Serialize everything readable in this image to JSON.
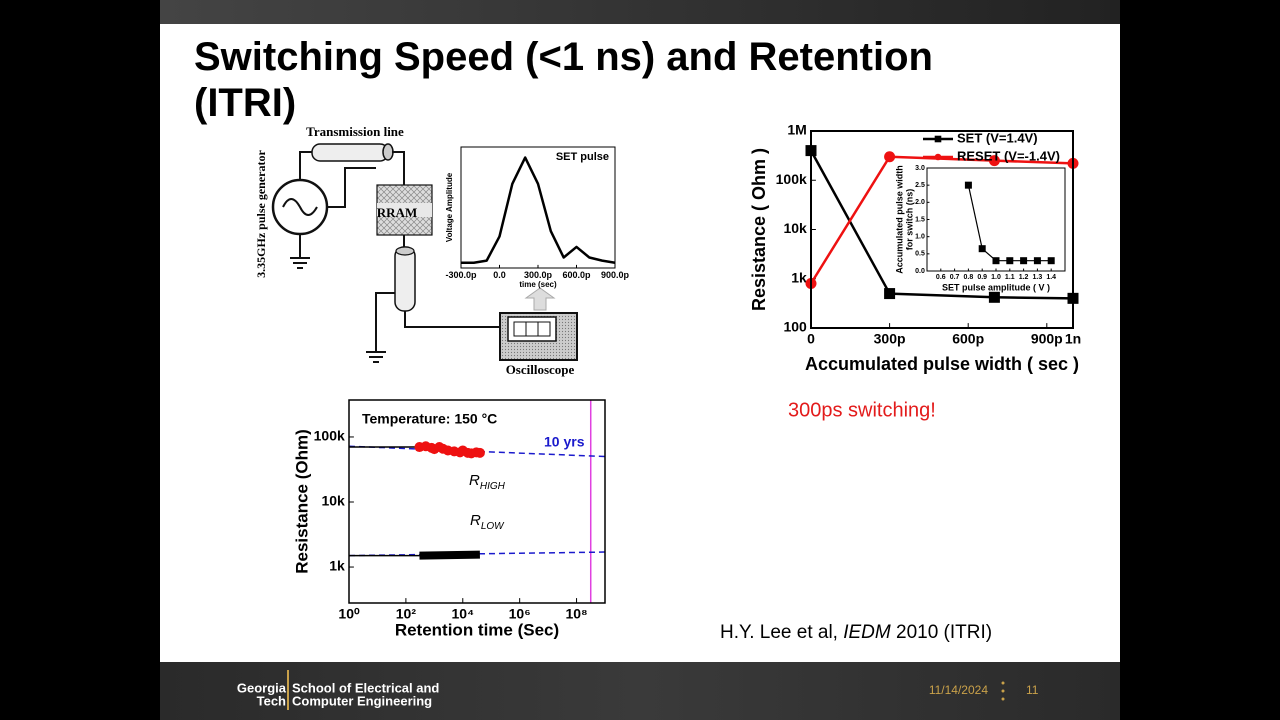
{
  "slide": {
    "title": "Switching Speed (<1 ns) and Retention (ITRI)",
    "annotation": "300ps switching!",
    "citation": [
      "H.Y. Lee et al,",
      "IEDM",
      "2010 (ITRI)"
    ]
  },
  "diagram": {
    "transmission_line": "Transmission line",
    "generator": "3.35GHz pulse generator",
    "device": "RRAM",
    "scope": "Oscilloscope"
  },
  "footer": {
    "logo": [
      "Georgia",
      "Tech"
    ],
    "school": [
      "School of Electrical and",
      "Computer Engineering"
    ],
    "date": "11/14/2024",
    "page": "11"
  },
  "chart_data": [
    {
      "type": "line",
      "title": "SET pulse",
      "xlabel": "time (sec)",
      "ylabel": [
        "Voltage Amplitude"
      ],
      "x": [
        -3e-10,
        -2e-10,
        -1e-10,
        0,
        1e-10,
        2e-10,
        3e-10,
        4e-10,
        5e-10,
        6e-10,
        7e-10,
        8e-10,
        9e-10
      ],
      "xlim": [
        -3e-10,
        9e-10
      ],
      "xticks": [
        {
          "value": -3e-10,
          "label": "-300.0p"
        },
        {
          "value": 0,
          "label": "0.0"
        },
        {
          "value": 3e-10,
          "label": "300.0p"
        },
        {
          "value": 6e-10,
          "label": "600.0p"
        },
        {
          "value": 9e-10,
          "label": "900.0p"
        }
      ],
      "ylim": [
        -0.05,
        1.1
      ],
      "series": [
        {
          "color": "#000000",
          "marker": "none",
          "values": [
            0,
            0,
            0.02,
            0.25,
            0.75,
            1.0,
            0.75,
            0.3,
            0.05,
            0.15,
            0.05,
            0.02,
            0
          ]
        }
      ]
    },
    {
      "type": "line",
      "xlabel": "Accumulated pulse width ( sec )",
      "ylabel": [
        "Resistance ( Ohm )"
      ],
      "x": [
        0,
        3e-10,
        7e-10,
        1e-09
      ],
      "xlim": [
        0,
        1e-09
      ],
      "xticks": [
        0,
        {
          "value": 3e-10,
          "label": "300p"
        },
        {
          "value": 6e-10,
          "label": "600p"
        },
        {
          "value": 9e-10,
          "label": "900p"
        },
        {
          "value": 1e-09,
          "label": "1n"
        }
      ],
      "log_y": true,
      "ylim": [
        100,
        1000000
      ],
      "yticks": [
        100,
        {
          "value": 1000,
          "label": "1k"
        },
        {
          "value": 10000,
          "label": "10k"
        },
        {
          "value": 100000,
          "label": "100k"
        },
        {
          "value": 1000000,
          "label": "1M"
        }
      ],
      "legend": "upper right",
      "series": [
        {
          "name": "SET (V=1.4V)",
          "color": "#000000",
          "marker": "square",
          "values": [
            400000,
            500,
            420,
            400
          ]
        },
        {
          "name": "RESET (V=-1.4V)",
          "color": "#ee1111",
          "marker": "circle",
          "values": [
            800,
            300000,
            250000,
            220000
          ]
        }
      ]
    },
    {
      "type": "line",
      "xlabel": "SET pulse amplitude ( V )",
      "ylabel": [
        "Accumulated pulse width",
        "for switch (ns)"
      ],
      "x": [
        0.8,
        0.9,
        1.0,
        1.1,
        1.2,
        1.3,
        1.4
      ],
      "xlim": [
        0.5,
        1.5
      ],
      "xticks": [
        0.6,
        0.7,
        0.8,
        0.9,
        {
          "value": 1,
          "label": "1.0"
        },
        1.1,
        1.2,
        1.3,
        1.4
      ],
      "ylim": [
        0,
        3
      ],
      "yticks": [
        {
          "value": 0,
          "label": "0.0"
        },
        0.5,
        {
          "value": 1,
          "label": "1.0"
        },
        1.5,
        {
          "value": 2,
          "label": "2.0"
        },
        2.5,
        {
          "value": 3,
          "label": "3.0"
        }
      ],
      "series": [
        {
          "color": "#000000",
          "marker": "square",
          "values": [
            2.5,
            0.65,
            0.3,
            0.3,
            0.3,
            0.3,
            0.3
          ]
        }
      ]
    },
    {
      "type": "line",
      "xlabel": "Retention time (Sec)",
      "ylabel": [
        "Resistance (Ohm)"
      ],
      "annotations": {
        "temperature": "Temperature: 150 °C",
        "ten_years": "10 yrs",
        "r_high": [
          "R",
          "HIGH"
        ],
        "r_low": [
          "R",
          "LOW"
        ]
      },
      "log_x": true,
      "xlim": [
        1,
        1000000000
      ],
      "xticks": [
        {
          "value": 1,
          "label": "10⁰"
        },
        {
          "value": 100,
          "label": "10²"
        },
        {
          "value": 10000,
          "label": "10⁴"
        },
        {
          "value": 1000000,
          "label": "10⁶"
        },
        {
          "value": 100000000,
          "label": "10⁸"
        }
      ],
      "log_y": true,
      "ylim": [
        280,
        370000
      ],
      "yticks": [
        {
          "value": 1000,
          "label": "1k"
        },
        {
          "value": 10000,
          "label": "10k"
        },
        {
          "value": 100000,
          "label": "100k"
        }
      ],
      "vline": {
        "x": 315000000,
        "color": "#e040e0"
      },
      "series": [
        {
          "color": "#1a1acc",
          "marker": "none",
          "dashed": true,
          "x": [
            1,
            1000000000
          ],
          "values": [
            72000,
            50000
          ]
        },
        {
          "color": "#1a1acc",
          "marker": "none",
          "dashed": true,
          "x": [
            1,
            1000000000
          ],
          "values": [
            1500,
            1700
          ]
        },
        {
          "color": "#000000",
          "marker": "none",
          "x": [
            1,
            300
          ],
          "values": [
            70000,
            70000
          ]
        },
        {
          "color": "#ee1111",
          "marker": "circle",
          "line": false,
          "x": [
            300,
            500,
            800,
            1000,
            1500,
            2000,
            3000,
            5000,
            8000,
            10000,
            15000,
            20000,
            30000,
            40000
          ],
          "values": [
            70000,
            72000,
            68000,
            65000,
            70000,
            66000,
            62000,
            60000,
            58000,
            62000,
            57000,
            56000,
            58000,
            57000
          ]
        },
        {
          "color": "#000000",
          "marker": "none",
          "x": [
            1,
            300
          ],
          "values": [
            1500,
            1500
          ]
        },
        {
          "color": "#000000",
          "marker": "none",
          "width": 8,
          "x": [
            300,
            40000
          ],
          "values": [
            1500,
            1550
          ]
        }
      ]
    }
  ]
}
